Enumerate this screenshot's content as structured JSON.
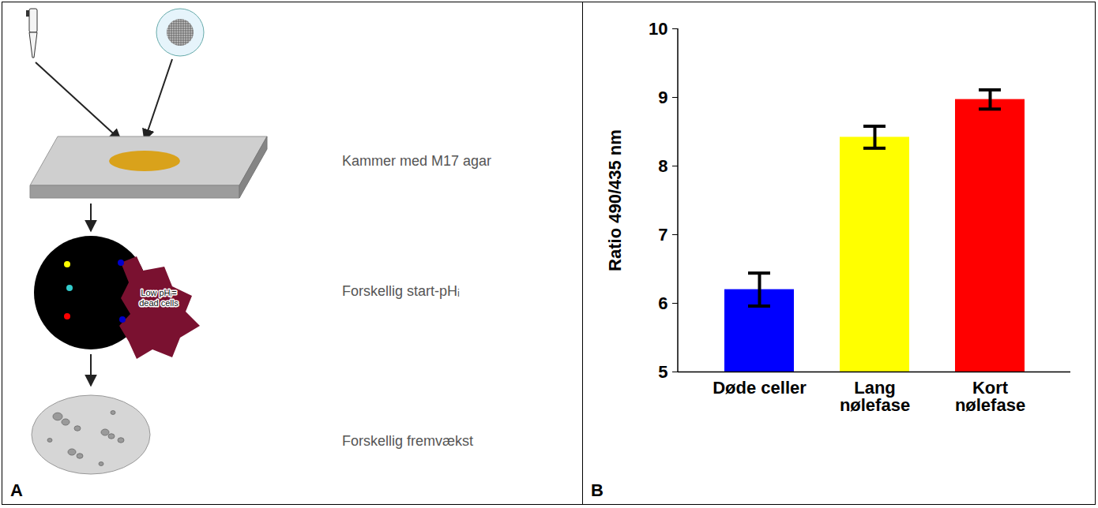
{
  "panel_labels": [
    "A",
    "B"
  ],
  "diagram": {
    "steps": [
      {
        "label": "Kammer med M17 agar"
      },
      {
        "label": "Forskellig start-pHᵢ",
        "inset_label": "Low pHᵢ= dead cells"
      },
      {
        "label": "Forskellig fremvækst"
      }
    ]
  },
  "chart_data": {
    "type": "bar",
    "categories": [
      "Døde celler",
      "Lang nølefase",
      "Kort nølefase"
    ],
    "values": [
      6.2,
      8.42,
      8.97
    ],
    "errors": [
      0.24,
      0.16,
      0.14
    ],
    "colors": [
      "#0000ff",
      "#ffff00",
      "#ff0000"
    ],
    "ylabel": "Ratio 490/435 nm",
    "ylim": [
      5,
      10
    ],
    "yticks": [
      5,
      6,
      7,
      8,
      9,
      10
    ],
    "grid": false
  }
}
